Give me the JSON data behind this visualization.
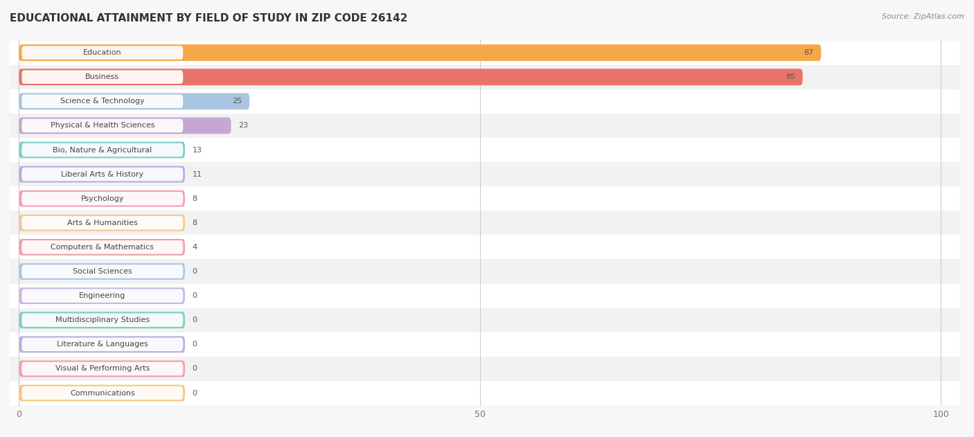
{
  "title": "EDUCATIONAL ATTAINMENT BY FIELD OF STUDY IN ZIP CODE 26142",
  "source": "Source: ZipAtlas.com",
  "categories": [
    "Education",
    "Business",
    "Science & Technology",
    "Physical & Health Sciences",
    "Bio, Nature & Agricultural",
    "Liberal Arts & History",
    "Psychology",
    "Arts & Humanities",
    "Computers & Mathematics",
    "Social Sciences",
    "Engineering",
    "Multidisciplinary Studies",
    "Literature & Languages",
    "Visual & Performing Arts",
    "Communications"
  ],
  "values": [
    87,
    85,
    25,
    23,
    13,
    11,
    8,
    8,
    4,
    0,
    0,
    0,
    0,
    0,
    0
  ],
  "bar_colors": [
    "#F5A84A",
    "#E8736A",
    "#A8C4E0",
    "#C4A8D4",
    "#7ECECA",
    "#B0B0E8",
    "#F4A0B8",
    "#F5C896",
    "#F0A0A8",
    "#A8C8E8",
    "#C8B8E0",
    "#7ECEC8",
    "#B8B0E0",
    "#F4A0B0",
    "#F5C880"
  ],
  "xlim": [
    0,
    100
  ],
  "xticks": [
    0,
    50,
    100
  ],
  "background_color": "#F7F7F7",
  "row_colors": [
    "#FFFFFF",
    "#F2F2F2"
  ],
  "title_fontsize": 11,
  "source_fontsize": 8,
  "label_fontsize": 8,
  "value_fontsize": 8,
  "tick_fontsize": 9,
  "min_bar_width": 18
}
